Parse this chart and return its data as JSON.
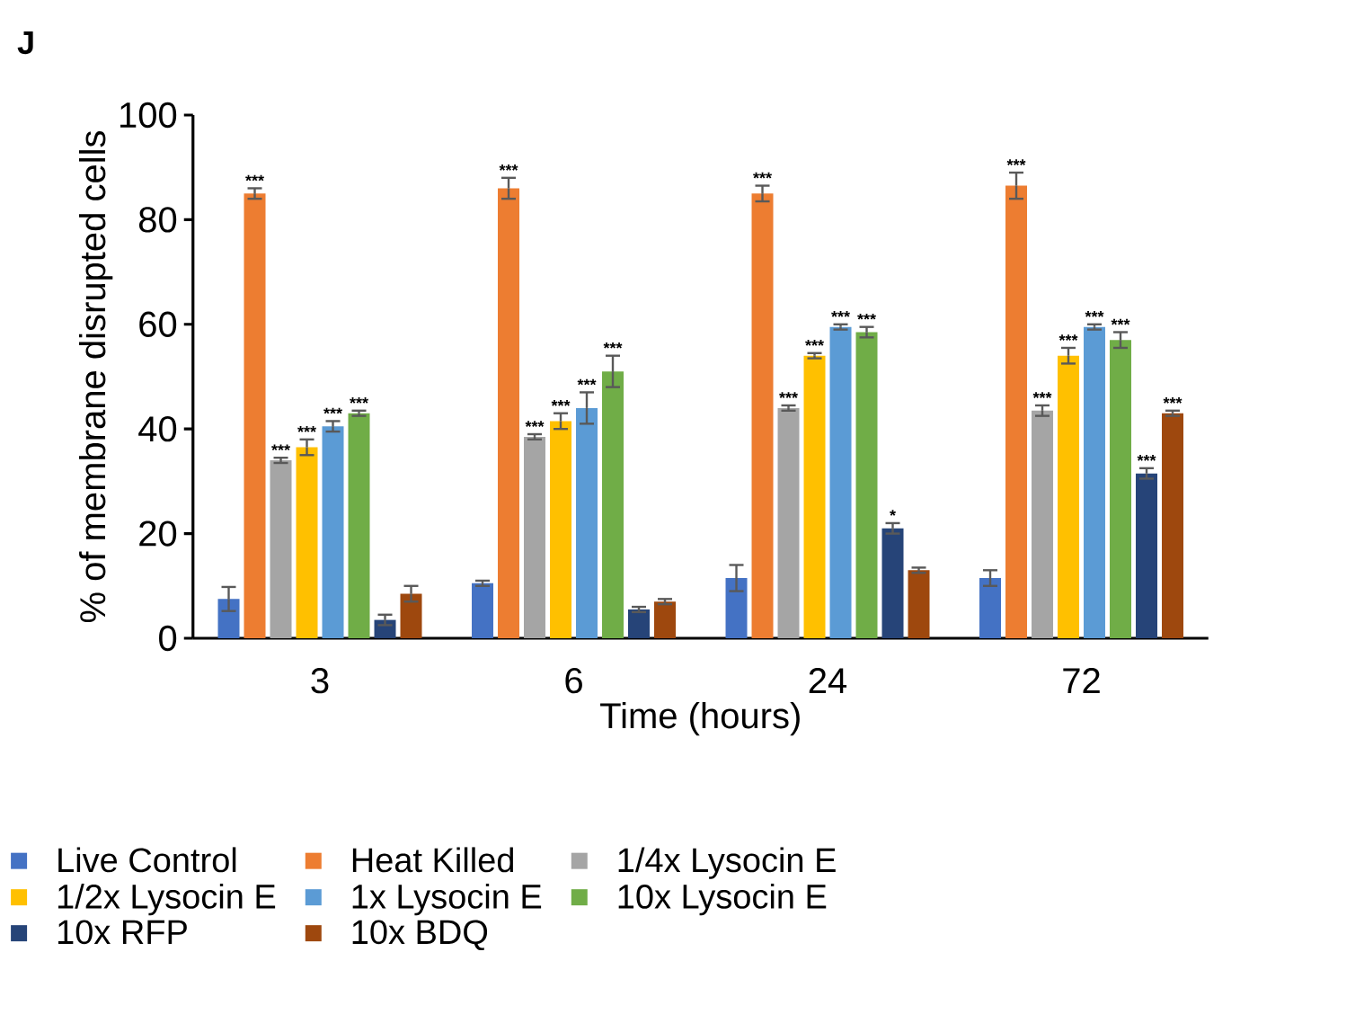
{
  "chart_data": {
    "type": "bar",
    "xlabel": "Time (hours)",
    "ylabel": "% of membrane disrupted cells",
    "categories": [
      "3",
      "6",
      "24",
      "72"
    ],
    "ylim": [
      0,
      100
    ],
    "yticks": [
      0,
      20,
      40,
      60,
      80,
      100
    ],
    "legend": "bottom",
    "annotations": [
      "J"
    ],
    "series": [
      {
        "name": "Live Control",
        "color": "#4472c4",
        "values": [
          7.5,
          10.5,
          11.5,
          11.5
        ],
        "errors": [
          2.3,
          0.5,
          2.5,
          1.5
        ],
        "value_labels": [
          null,
          null,
          null,
          null
        ]
      },
      {
        "name": "Heat Killed",
        "color": "#ed7d31",
        "values": [
          85,
          86,
          85,
          86.5
        ],
        "errors": [
          1,
          2,
          1.5,
          2.5
        ],
        "value_labels": [
          "***",
          "***",
          "***",
          "***"
        ]
      },
      {
        "name": "1/4x Lysocin E",
        "color": "#a5a5a5",
        "values": [
          34,
          38.5,
          44,
          43.5
        ],
        "errors": [
          0.5,
          0.5,
          0.5,
          1
        ],
        "value_labels": [
          "***",
          "***",
          "***",
          "***"
        ]
      },
      {
        "name": "1/2x Lysocin E",
        "color": "#ffc000",
        "values": [
          36.5,
          41.5,
          54,
          54
        ],
        "errors": [
          1.5,
          1.5,
          0.5,
          1.5
        ],
        "value_labels": [
          "***",
          "***",
          "***",
          "***"
        ]
      },
      {
        "name": "1x Lysocin E",
        "color": "#5b9bd5",
        "values": [
          40.5,
          44,
          59.5,
          59.5
        ],
        "errors": [
          1,
          3,
          0.5,
          0.5
        ],
        "value_labels": [
          "***",
          "***",
          "***",
          "***"
        ]
      },
      {
        "name": "10x Lysocin E",
        "color": "#70ad47",
        "values": [
          43,
          51,
          58.5,
          57
        ],
        "errors": [
          0.5,
          3,
          1,
          1.5
        ],
        "value_labels": [
          "***",
          "***",
          "***",
          "***"
        ]
      },
      {
        "name": "10x RFP",
        "color": "#264478",
        "values": [
          3.5,
          5.5,
          21,
          31.5
        ],
        "errors": [
          1,
          0.5,
          1,
          1
        ],
        "value_labels": [
          null,
          null,
          "*",
          "***"
        ]
      },
      {
        "name": "10x BDQ",
        "color": "#9e480e",
        "values": [
          8.5,
          7,
          13,
          43
        ],
        "errors": [
          1.5,
          0.5,
          0.5,
          0.5
        ],
        "value_labels": [
          null,
          null,
          null,
          "***"
        ]
      }
    ]
  }
}
